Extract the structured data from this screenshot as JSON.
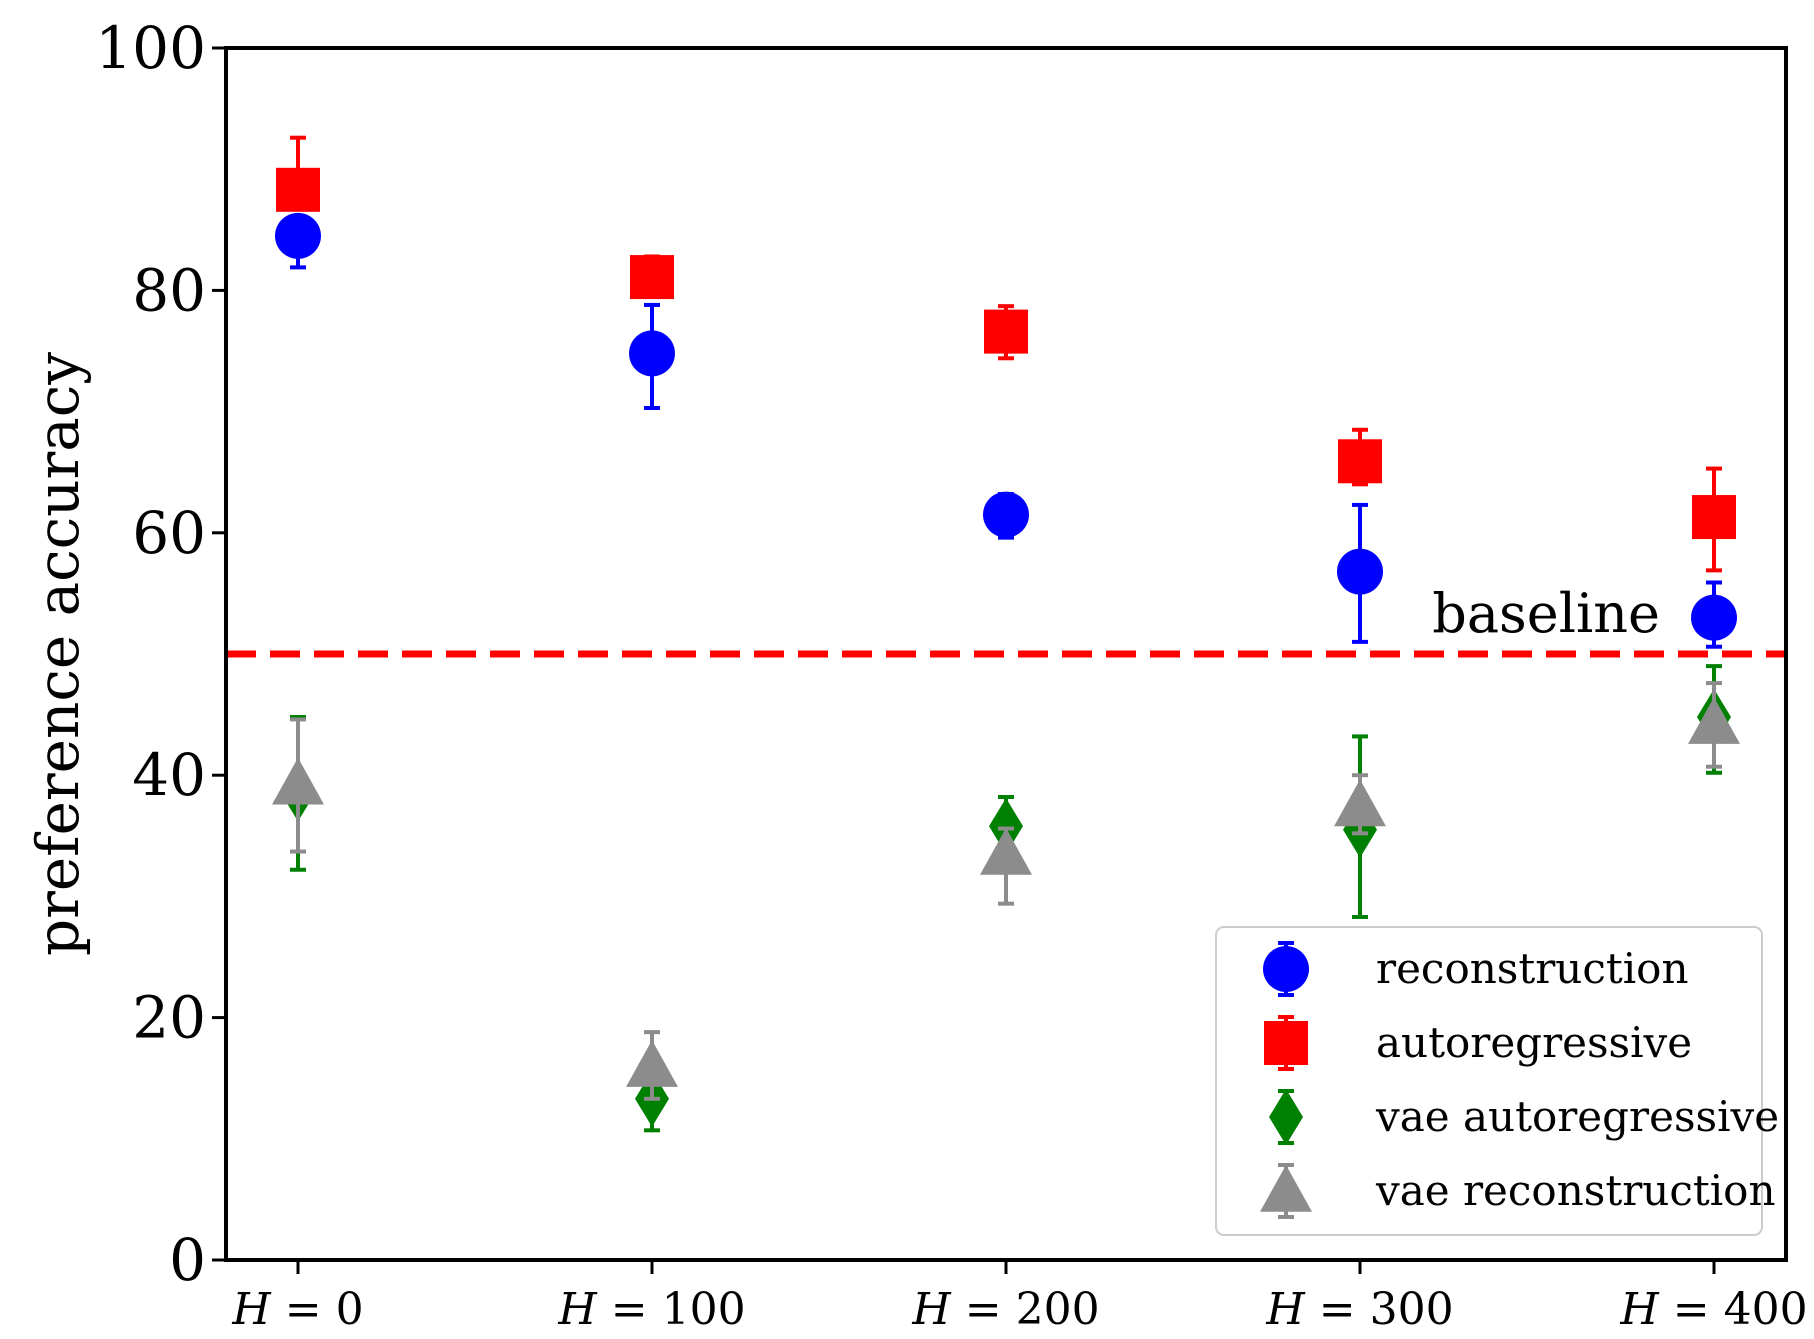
{
  "chart_data": {
    "type": "scatter",
    "title": "",
    "xlabel": "",
    "ylabel": "preference accuracy",
    "categories": [
      "H = 0",
      "H = 100",
      "H = 200",
      "H = 300",
      "H = 400"
    ],
    "category_parts": [
      {
        "var": "H",
        "op": " = ",
        "num": "0"
      },
      {
        "var": "H",
        "op": " = ",
        "num": "100"
      },
      {
        "var": "H",
        "op": " = ",
        "num": "200"
      },
      {
        "var": "H",
        "op": " = ",
        "num": "300"
      },
      {
        "var": "H",
        "op": " = ",
        "num": "400"
      }
    ],
    "ylim": [
      0,
      100
    ],
    "yticks": [
      "0",
      "20",
      "40",
      "60",
      "80",
      "100"
    ],
    "grid": false,
    "legend_position": "bottom-right",
    "series": [
      {
        "name": "reconstruction",
        "marker": "circle",
        "color": "#0000ff",
        "values": [
          84.5,
          74.8,
          61.5,
          56.8,
          53.0
        ],
        "err_low": [
          81.9,
          70.3,
          59.6,
          51.0,
          50.6
        ],
        "err_high": [
          84.5,
          78.8,
          63.2,
          62.3,
          55.9
        ]
      },
      {
        "name": "autoregressive",
        "marker": "square",
        "color": "#ff0000",
        "values": [
          88.3,
          81.1,
          76.6,
          65.9,
          61.3
        ],
        "err_low": [
          88.3,
          79.5,
          74.4,
          64.0,
          56.9
        ],
        "err_high": [
          92.6,
          82.8,
          78.7,
          68.5,
          65.3
        ]
      },
      {
        "name": "vae autoregressive",
        "marker": "diamond",
        "color": "#008000",
        "values": [
          38.5,
          13.3,
          35.8,
          35.5,
          44.8
        ],
        "err_low": [
          32.2,
          10.7,
          33.0,
          28.3,
          40.2
        ],
        "err_high": [
          44.8,
          15.9,
          38.2,
          43.2,
          49.0
        ]
      },
      {
        "name": "vae reconstruction",
        "marker": "triangle",
        "color": "#8c8c8c",
        "values": [
          39.3,
          16.0,
          33.5,
          37.5,
          44.3
        ],
        "err_low": [
          33.7,
          13.3,
          29.4,
          35.2,
          40.7
        ],
        "err_high": [
          44.6,
          18.8,
          35.6,
          40.0,
          47.6
        ]
      }
    ],
    "reference_line": {
      "value": 50,
      "label": "baseline",
      "color": "#ff0000",
      "style": "dashed"
    }
  }
}
